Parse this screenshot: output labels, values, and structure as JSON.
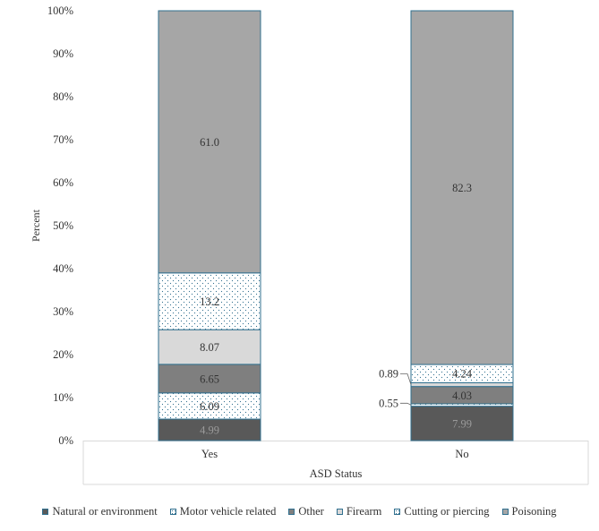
{
  "chart_data": {
    "type": "bar",
    "stacked": true,
    "xlabel": "ASD Status",
    "ylabel": "Percent",
    "ylim": [
      0,
      100
    ],
    "yticks": [
      "0%",
      "10%",
      "20%",
      "30%",
      "40%",
      "50%",
      "60%",
      "70%",
      "80%",
      "90%",
      "100%"
    ],
    "categories": [
      "Yes",
      "No"
    ],
    "series": [
      {
        "name": "Natural or environment",
        "values": [
          4.99,
          7.99
        ],
        "labels": [
          "4.99",
          "7.99"
        ],
        "color": "#595959",
        "pattern": "solid"
      },
      {
        "name": "Motor vehicle related",
        "values": [
          6.09,
          0.55
        ],
        "labels": [
          "6.09",
          "0.55"
        ],
        "color": "#ffffff",
        "pattern": "dots"
      },
      {
        "name": "Other",
        "values": [
          6.65,
          4.03
        ],
        "labels": [
          "6.65",
          "4.03"
        ],
        "color": "#7f7f7f",
        "pattern": "solid"
      },
      {
        "name": "Firearm",
        "values": [
          8.07,
          0.89
        ],
        "labels": [
          "8.07",
          "0.89"
        ],
        "color": "#d9d9d9",
        "pattern": "solid"
      },
      {
        "name": "Cutting or piercing",
        "values": [
          13.2,
          4.24
        ],
        "labels": [
          "13.2",
          "4.24"
        ],
        "color": "#ffffff",
        "pattern": "dots"
      },
      {
        "name": "Poisoning",
        "values": [
          61.0,
          82.3
        ],
        "labels": [
          "61.0",
          "82.3"
        ],
        "color": "#a6a6a6",
        "pattern": "solid"
      }
    ],
    "legend_position": "bottom",
    "grid": false
  }
}
